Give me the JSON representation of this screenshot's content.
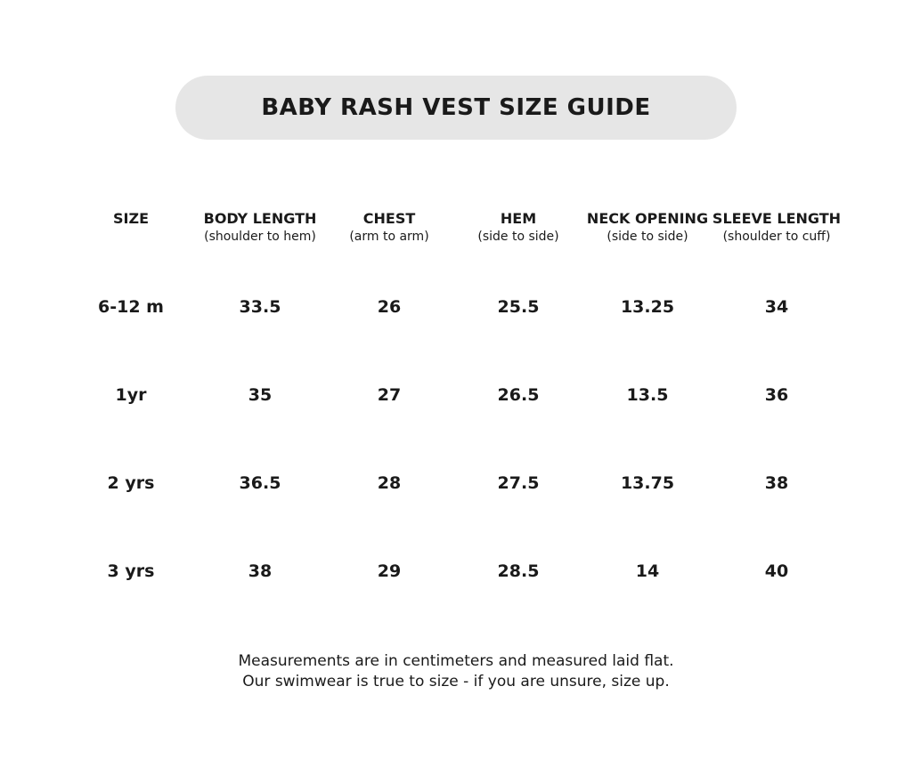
{
  "header": {
    "title": "BABY RASH VEST SIZE GUIDE"
  },
  "table": {
    "columns": [
      {
        "name": "SIZE",
        "sub": null
      },
      {
        "name": "BODY LENGTH",
        "sub": "(shoulder to hem)"
      },
      {
        "name": "CHEST",
        "sub": "(arm to arm)"
      },
      {
        "name": "HEM",
        "sub": "(side to side)"
      },
      {
        "name": "NECK OPENING",
        "sub": "(side to side)"
      },
      {
        "name": "SLEEVE LENGTH",
        "sub": "(shoulder to cuff)"
      }
    ],
    "rows": [
      [
        "6-12 m",
        "33.5",
        "26",
        "25.5",
        "13.25",
        "34"
      ],
      [
        "1yr",
        "35",
        "27",
        "26.5",
        "13.5",
        "36"
      ],
      [
        "2 yrs",
        "36.5",
        "28",
        "27.5",
        "13.75",
        "38"
      ],
      [
        "3 yrs",
        "38",
        "29",
        "28.5",
        "14",
        "40"
      ]
    ]
  },
  "footer": {
    "lines": [
      "Measurements are in centimeters and measured laid flat.",
      "Our swimwear is true to size - if you are unsure, size up."
    ]
  }
}
